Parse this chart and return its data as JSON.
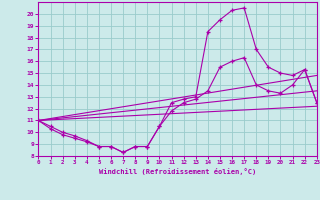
{
  "xlabel": "Windchill (Refroidissement éolien,°C)",
  "bg_color": "#cceaea",
  "grid_color": "#99cccc",
  "line_color": "#aa00aa",
  "xlim": [
    0,
    23
  ],
  "ylim": [
    8,
    21
  ],
  "xticks": [
    0,
    1,
    2,
    3,
    4,
    5,
    6,
    7,
    8,
    9,
    10,
    11,
    12,
    13,
    14,
    15,
    16,
    17,
    18,
    19,
    20,
    21,
    22,
    23
  ],
  "yticks": [
    8,
    9,
    10,
    11,
    12,
    13,
    14,
    15,
    16,
    17,
    18,
    19,
    20
  ],
  "curve1_x": [
    0,
    1,
    2,
    3,
    4,
    5,
    6,
    7,
    8,
    9,
    10,
    11,
    12,
    13,
    14,
    15,
    16,
    17,
    18,
    19,
    20,
    21,
    22,
    23
  ],
  "curve1_y": [
    11.0,
    10.5,
    10.0,
    9.7,
    9.3,
    8.8,
    8.8,
    8.3,
    8.8,
    8.8,
    10.5,
    12.5,
    12.8,
    13.0,
    18.5,
    19.5,
    20.3,
    20.5,
    17.0,
    15.5,
    15.0,
    14.8,
    15.3,
    12.5
  ],
  "curve2_x": [
    0,
    1,
    2,
    3,
    4,
    5,
    6,
    7,
    8,
    9,
    10,
    11,
    12,
    13,
    14,
    15,
    16,
    17,
    18,
    19,
    20,
    21,
    22,
    23
  ],
  "curve2_y": [
    11.0,
    10.3,
    9.8,
    9.5,
    9.2,
    8.8,
    8.8,
    8.3,
    8.8,
    8.8,
    10.5,
    11.8,
    12.5,
    12.8,
    13.5,
    15.5,
    16.0,
    16.3,
    14.0,
    13.5,
    13.3,
    14.0,
    15.3,
    12.5
  ],
  "line1_x": [
    0,
    23
  ],
  "line1_y": [
    11.0,
    12.2
  ],
  "line2_x": [
    0,
    23
  ],
  "line2_y": [
    11.0,
    13.5
  ],
  "line3_x": [
    0,
    23
  ],
  "line3_y": [
    11.0,
    14.8
  ]
}
